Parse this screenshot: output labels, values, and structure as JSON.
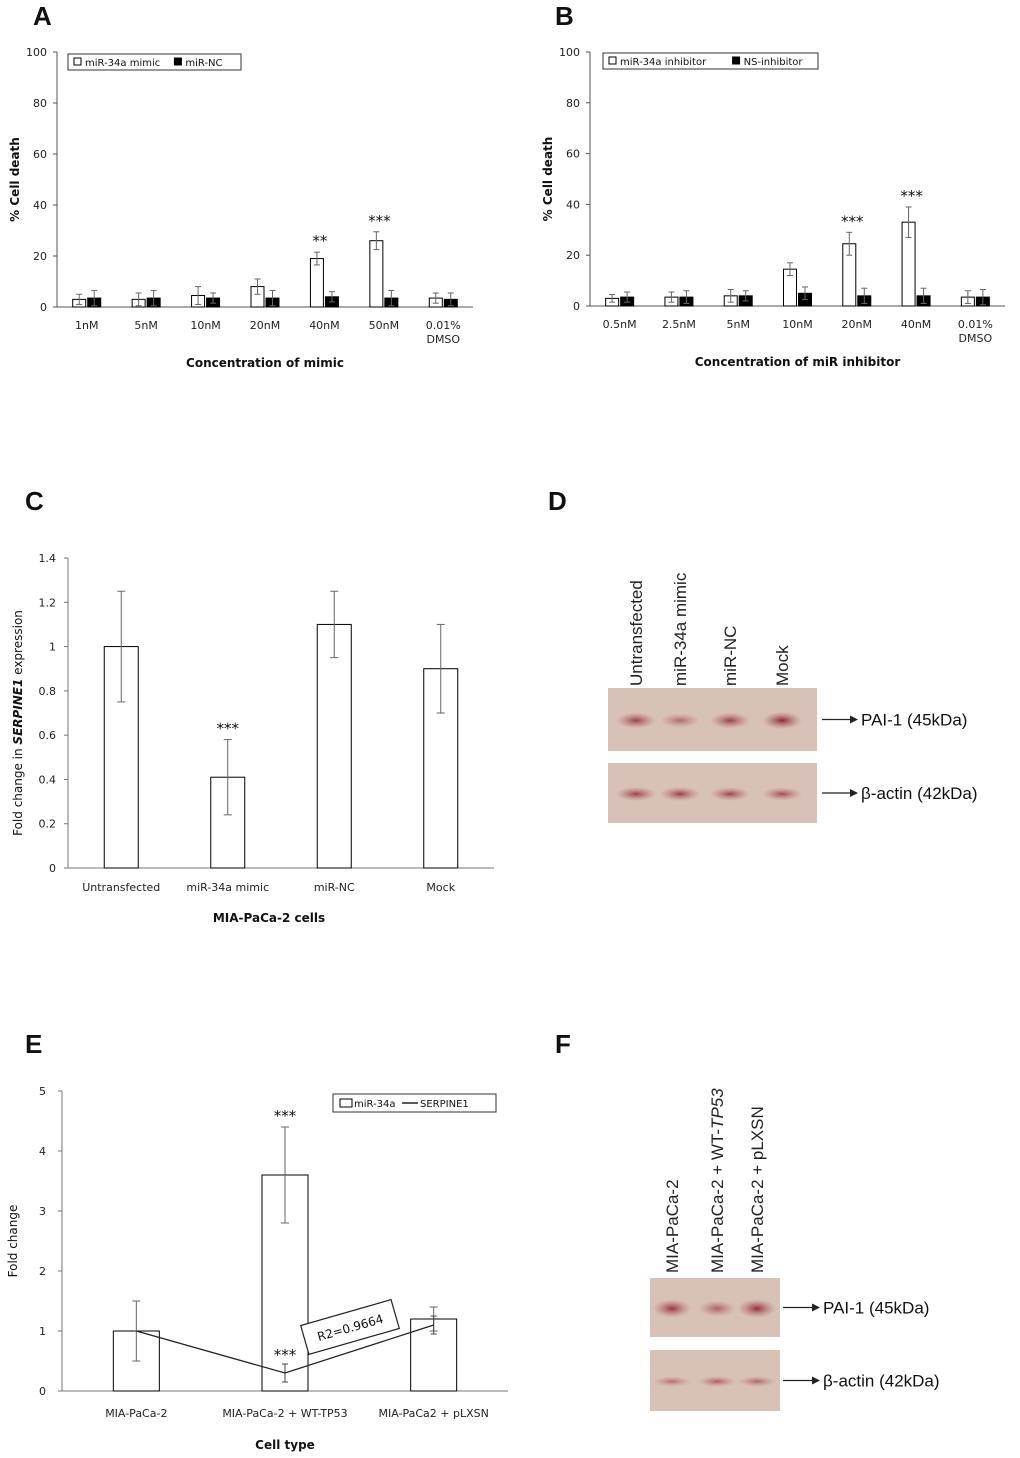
{
  "panels": {
    "A": {
      "letter": "A",
      "chart_data": {
        "type": "bar",
        "categories": [
          "1nM",
          "5nM",
          "10nM",
          "20nM",
          "40nM",
          "50nM",
          "0.01%\nDMSO"
        ],
        "series": [
          {
            "name": "miR-34a mimic",
            "values": [
              3,
              3,
              4.5,
              8,
              19,
              26,
              3.5
            ],
            "errors": [
              2,
              2.5,
              3.5,
              3,
              2.5,
              3.5,
              2
            ],
            "color": "#ffffff"
          },
          {
            "name": "miR-NC",
            "values": [
              3.5,
              3.5,
              3.5,
              3.5,
              4,
              3.5,
              3
            ],
            "errors": [
              3,
              3,
              2,
              3,
              2,
              3,
              2.5
            ],
            "color": "#000000"
          }
        ],
        "significance": [
          "",
          "",
          "",
          "",
          "**",
          "***",
          ""
        ],
        "xlabel": "Concentration of mimic",
        "ylabel": "% Cell death",
        "ylim": [
          0,
          100
        ],
        "yticks": [
          0,
          20,
          40,
          60,
          80,
          100
        ],
        "legend_position": "top-left"
      }
    },
    "B": {
      "letter": "B",
      "chart_data": {
        "type": "bar",
        "categories": [
          "0.5nM",
          "2.5nM",
          "5nM",
          "10nM",
          "20nM",
          "40nM",
          "0.01%\nDMSO"
        ],
        "series": [
          {
            "name": "miR-34a inhibitor",
            "values": [
              3,
              3.5,
              4,
              14.5,
              24.5,
              33,
              3.5
            ],
            "errors": [
              1.5,
              2,
              2.5,
              2.5,
              4.5,
              6,
              2.5
            ],
            "color": "#ffffff"
          },
          {
            "name": "NS-inhibitor",
            "values": [
              3.5,
              3.5,
              4,
              5,
              4,
              4,
              3.5
            ],
            "errors": [
              2,
              2.5,
              2,
              2.5,
              3,
              3,
              3
            ],
            "color": "#000000"
          }
        ],
        "significance": [
          "",
          "",
          "",
          "",
          "***",
          "***",
          ""
        ],
        "xlabel": "Concentration of miR inhibitor",
        "ylabel": "% Cell death",
        "ylim": [
          0,
          100
        ],
        "yticks": [
          0,
          20,
          40,
          60,
          80,
          100
        ],
        "legend_position": "top-left"
      }
    },
    "C": {
      "letter": "C",
      "chart_data": {
        "type": "bar",
        "categories": [
          "Untransfected",
          "miR-34a mimic",
          "miR-NC",
          "Mock"
        ],
        "series": [
          {
            "name": "",
            "values": [
              1.0,
              0.41,
              1.1,
              0.9
            ],
            "errors": [
              0.25,
              0.17,
              0.15,
              0.2
            ],
            "color": "#ffffff"
          }
        ],
        "significance": [
          "",
          "***",
          "",
          ""
        ],
        "xlabel": "MIA-PaCa-2 cells",
        "ylabel_pre": "Fold change in ",
        "ylabel_gene": "SERPINE1",
        "ylabel_post": " expression",
        "ylim": [
          0,
          1.4
        ],
        "yticks": [
          "0",
          "0.2",
          "0.4",
          "0.6",
          "0.8",
          "1",
          "1.2",
          "1.4"
        ]
      }
    },
    "D": {
      "letter": "D",
      "lanes": [
        "Untransfected",
        "miR-34a mimic",
        "miR-NC",
        "Mock"
      ],
      "proteins": [
        "PAI-1 (45kDa)",
        "β-actin (42kDa)"
      ],
      "band_intensity": {
        "PAI-1": [
          0.8,
          0.55,
          0.8,
          0.95
        ],
        "beta-actin": [
          0.8,
          0.8,
          0.75,
          0.7
        ]
      }
    },
    "E": {
      "letter": "E",
      "chart_data": {
        "type": "bar",
        "categories": [
          "MIA-PaCa-2",
          "MIA-PaCa-2 + WT-TP53",
          "MIA-PaCa2 + pLXSN"
        ],
        "series": [
          {
            "name": "miR-34a",
            "kind": "bar",
            "values": [
              1.0,
              3.6,
              1.2
            ],
            "errors": [
              0.5,
              0.8,
              0.2
            ],
            "color": "#ffffff"
          },
          {
            "name": "SERPINE1",
            "kind": "line",
            "values": [
              1.0,
              0.3,
              1.1
            ],
            "errors": [
              0,
              0.15,
              0.15
            ],
            "color": "#000000"
          }
        ],
        "bar_significance": [
          "",
          "***",
          ""
        ],
        "line_significance": [
          "",
          "***",
          ""
        ],
        "annotation": "R2=0.9664",
        "xlabel": "Cell type",
        "ylabel": "Fold change",
        "ylim": [
          0,
          5
        ],
        "yticks": [
          0,
          1,
          2,
          3,
          4,
          5
        ],
        "legend_position": "top-right"
      }
    },
    "F": {
      "letter": "F",
      "lanes": [
        {
          "pre": "MIA-PaCa-2",
          "italic": "",
          "post": ""
        },
        {
          "pre": "MIA-PaCa-2 + WT-",
          "italic": "TP53",
          "post": ""
        },
        {
          "pre": "MIA-PaCa-2 + pLXSN",
          "italic": "",
          "post": ""
        }
      ],
      "proteins": [
        "PAI-1 (45kDa)",
        "β-actin (42kDa)"
      ],
      "band_intensity": {
        "PAI-1": [
          0.85,
          0.6,
          0.9
        ],
        "beta-actin": [
          0.5,
          0.6,
          0.55
        ]
      }
    }
  }
}
